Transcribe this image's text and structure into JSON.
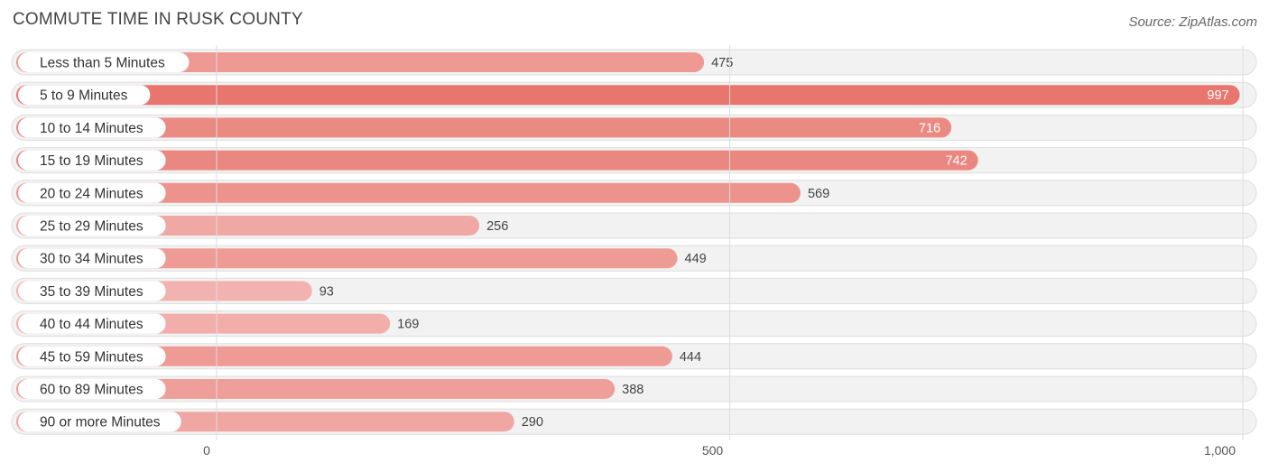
{
  "header": {
    "title": "COMMUTE TIME IN RUSK COUNTY",
    "source": "Source: ZipAtlas.com"
  },
  "colors": {
    "bar_strong": "#e8766e",
    "bar_light": "#f2b3b0",
    "track": "#f2f2f2",
    "track_border": "#dedede",
    "gridline": "#dddddd"
  },
  "chart_data": {
    "type": "bar",
    "orientation": "horizontal",
    "title": "COMMUTE TIME IN RUSK COUNTY",
    "categories": [
      "Less than 5 Minutes",
      "5 to 9 Minutes",
      "10 to 14 Minutes",
      "15 to 19 Minutes",
      "20 to 24 Minutes",
      "25 to 29 Minutes",
      "30 to 34 Minutes",
      "35 to 39 Minutes",
      "40 to 44 Minutes",
      "45 to 59 Minutes",
      "60 to 89 Minutes",
      "90 or more Minutes"
    ],
    "values": [
      475,
      997,
      716,
      742,
      569,
      256,
      449,
      93,
      169,
      444,
      388,
      290
    ],
    "value_labels": [
      "475",
      "997",
      "716",
      "742",
      "569",
      "256",
      "449",
      "93",
      "169",
      "444",
      "388",
      "290"
    ],
    "xlim": [
      0,
      1000
    ],
    "ticks": [
      0,
      500,
      1000
    ],
    "tick_labels": [
      "0",
      "500",
      "1,000"
    ],
    "xlabel": "",
    "ylabel": "",
    "grid": true
  }
}
